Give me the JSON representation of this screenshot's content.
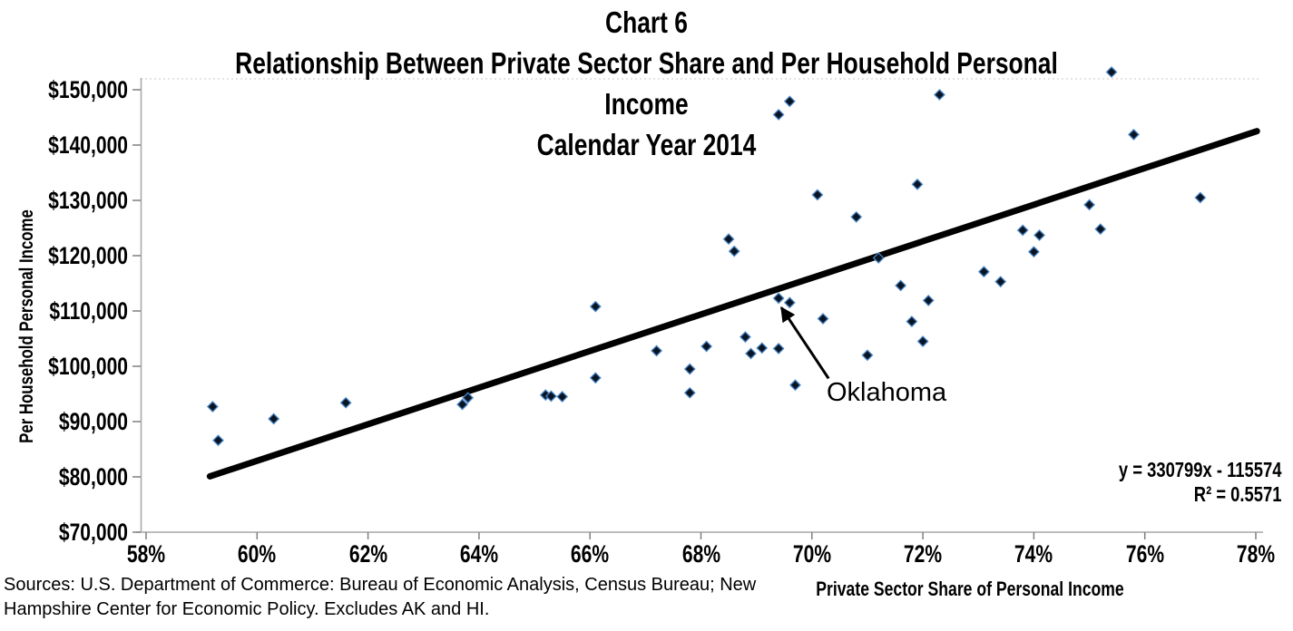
{
  "title": {
    "lines": [
      "Chart 6",
      "Relationship Between Private Sector Share and Per Household Personal",
      "Income",
      "Calendar Year 2014"
    ]
  },
  "axes": {
    "x": {
      "title": "Private Sector Share of Personal Income",
      "min": 58,
      "max": 78,
      "ticks": [
        {
          "label": "58%",
          "value": 58
        },
        {
          "label": "60%",
          "value": 60
        },
        {
          "label": "62%",
          "value": 62
        },
        {
          "label": "64%",
          "value": 64
        },
        {
          "label": "66%",
          "value": 66
        },
        {
          "label": "68%",
          "value": 68
        },
        {
          "label": "70%",
          "value": 70
        },
        {
          "label": "72%",
          "value": 72
        },
        {
          "label": "74%",
          "value": 74
        },
        {
          "label": "76%",
          "value": 76
        },
        {
          "label": "78%",
          "value": 78
        }
      ]
    },
    "y": {
      "title": "Per Household Personal Income",
      "min": 70000,
      "max": 150000,
      "ticks": [
        {
          "label": "$150,000",
          "value": 150000
        },
        {
          "label": "$140,000",
          "value": 140000
        },
        {
          "label": "$130,000",
          "value": 130000
        },
        {
          "label": "$120,000",
          "value": 120000
        },
        {
          "label": "$110,000",
          "value": 110000
        },
        {
          "label": "$100,000",
          "value": 100000
        },
        {
          "label": "$90,000",
          "value": 90000
        },
        {
          "label": "$80,000",
          "value": 80000
        },
        {
          "label": "$70,000",
          "value": 70000
        }
      ]
    }
  },
  "equation": {
    "line1": "y = 330799x - 115574",
    "line2": "R² = 0.5571"
  },
  "annotation": {
    "label": "Oklahoma",
    "arrow_tail": {
      "share": 70.3,
      "income": 97800
    },
    "arrow_head": {
      "share": 69.45,
      "income": 110600
    }
  },
  "source_note": {
    "lines": [
      "Sources: U.S. Department of Commerce: Bureau of Economic Analysis, Census Bureau; New",
      "Hampshire Center for Economic Policy. Excludes AK and HI."
    ]
  },
  "colors": {
    "marker_fill": "#0a1524",
    "marker_edge": "#4a86c6",
    "trendline": "#000000",
    "axis_line": "#a6a6a6",
    "tick_mark": "#7f7f7f",
    "plot_top_border": "#c9c9c9",
    "text": "#000000"
  },
  "chart_data": {
    "type": "scatter",
    "title": "Chart 6 — Relationship Between Private Sector Share and Per Household Personal Income — Calendar Year 2014",
    "xlabel": "Private Sector Share of Personal Income",
    "ylabel": "Per Household Personal Income",
    "xlim": [
      58,
      78
    ],
    "ylim": [
      70000,
      150000
    ],
    "grid": false,
    "points": [
      {
        "x": 59.2,
        "y": 92700
      },
      {
        "x": 59.3,
        "y": 86600
      },
      {
        "x": 60.3,
        "y": 90500
      },
      {
        "x": 61.6,
        "y": 93400
      },
      {
        "x": 63.7,
        "y": 93100
      },
      {
        "x": 63.8,
        "y": 94300
      },
      {
        "x": 65.2,
        "y": 94800
      },
      {
        "x": 65.3,
        "y": 94600
      },
      {
        "x": 65.5,
        "y": 94500
      },
      {
        "x": 66.1,
        "y": 110800
      },
      {
        "x": 66.1,
        "y": 97900
      },
      {
        "x": 67.2,
        "y": 102800
      },
      {
        "x": 67.8,
        "y": 99500
      },
      {
        "x": 67.8,
        "y": 95200
      },
      {
        "x": 68.1,
        "y": 103600
      },
      {
        "x": 68.5,
        "y": 123000
      },
      {
        "x": 68.6,
        "y": 120800
      },
      {
        "x": 68.8,
        "y": 105300
      },
      {
        "x": 68.9,
        "y": 102300
      },
      {
        "x": 69.1,
        "y": 103300
      },
      {
        "x": 69.4,
        "y": 103200
      },
      {
        "x": 69.4,
        "y": 145500
      },
      {
        "x": 69.6,
        "y": 147900
      },
      {
        "x": 69.4,
        "y": 112300,
        "label": "Oklahoma"
      },
      {
        "x": 69.6,
        "y": 111500
      },
      {
        "x": 69.7,
        "y": 96600
      },
      {
        "x": 70.1,
        "y": 131000
      },
      {
        "x": 70.2,
        "y": 108600
      },
      {
        "x": 70.8,
        "y": 127000
      },
      {
        "x": 71.0,
        "y": 102000
      },
      {
        "x": 71.2,
        "y": 119600
      },
      {
        "x": 71.6,
        "y": 114600
      },
      {
        "x": 71.8,
        "y": 108100
      },
      {
        "x": 71.9,
        "y": 132900
      },
      {
        "x": 72.0,
        "y": 104500
      },
      {
        "x": 72.1,
        "y": 111900
      },
      {
        "x": 72.3,
        "y": 149100
      },
      {
        "x": 73.1,
        "y": 117100
      },
      {
        "x": 73.4,
        "y": 115300
      },
      {
        "x": 73.8,
        "y": 124600
      },
      {
        "x": 74.0,
        "y": 120700
      },
      {
        "x": 74.1,
        "y": 123700
      },
      {
        "x": 75.0,
        "y": 129200
      },
      {
        "x": 75.2,
        "y": 124800
      },
      {
        "x": 75.4,
        "y": 153200
      },
      {
        "x": 75.8,
        "y": 141900
      },
      {
        "x": 77.0,
        "y": 130500
      }
    ],
    "trendline": {
      "slope": 330799,
      "intercept": -115574,
      "equation": "y = 330799x - 115574",
      "r_squared": 0.5571,
      "x_start": 59.15,
      "x_end": 78.02
    },
    "legend": "none"
  }
}
